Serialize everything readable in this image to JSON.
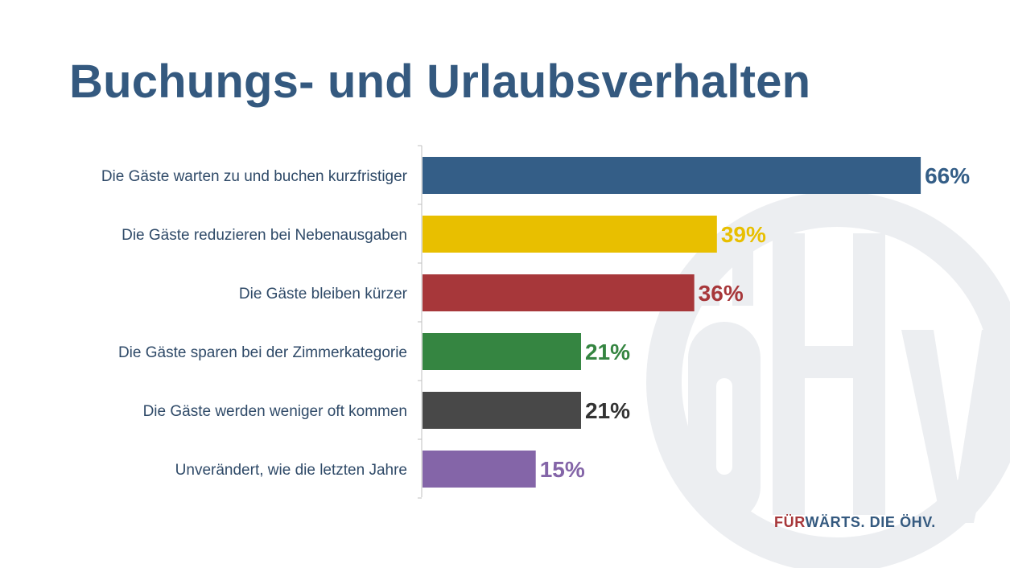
{
  "title": "Buchungs- und Urlaubsverhalten",
  "footer": {
    "part1": "FÜR",
    "part2": "WÄRTS. DIE ÖHV."
  },
  "logo_watermark": {
    "text": "ÖHV",
    "color": "#eceef1"
  },
  "chart_data": {
    "type": "bar",
    "orientation": "horizontal",
    "title": "Buchungs- und Urlaubsverhalten",
    "xlabel": "",
    "ylabel": "",
    "categories": [
      "Die Gäste warten zu und buchen kurzfristiger",
      "Die Gäste reduzieren bei Nebenausgaben",
      "Die Gäste bleiben kürzer",
      "Die Gäste sparen bei der Zimmerkategorie",
      "Die Gäste werden weniger oft kommen",
      "Unverändert, wie die letzten Jahre"
    ],
    "values": [
      66,
      39,
      36,
      21,
      21,
      15
    ],
    "value_labels": [
      "66%",
      "39%",
      "36%",
      "21%",
      "21%",
      "15%"
    ],
    "colors": [
      "#345e87",
      "#e8bf00",
      "#a7373a",
      "#358541",
      "#484848",
      "#8465a8"
    ],
    "label_colors": [
      "#345e87",
      "#e8bf00",
      "#a7373a",
      "#358541",
      "#333333",
      "#8465a8"
    ],
    "xlim": [
      0,
      100
    ],
    "grid": false,
    "legend": "none"
  }
}
